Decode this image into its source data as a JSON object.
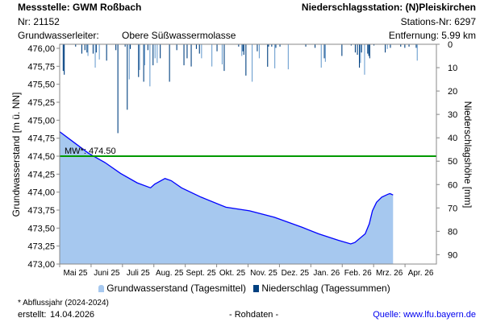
{
  "header": {
    "station_label": "Messstelle: GWM Roßbach",
    "number": "Nr: 21152",
    "aquifer_label": "Grundwasserleiter:",
    "aquifer_value": "Obere Süßwassermolasse",
    "precip_station": "Niederschlagsstation: (N)Pleiskirchen",
    "precip_station_nr": "Stations-Nr: 6297",
    "distance": "Entfernung: 5.99 km"
  },
  "footer": {
    "note": "* Abflussjahr (2024-2024)",
    "created_label": "erstellt:",
    "created_date": "14.04.2026",
    "data_type": "- Rohdaten -",
    "source": "Quelle: www.lfu.bayern.de"
  },
  "colors": {
    "area": "#a6c8ef",
    "line": "#0000ff",
    "mean": "#009900",
    "precip_dark": "#004080",
    "precip_light": "#6d9fd0"
  },
  "chart_data": {
    "type": "area",
    "start_date": "2025-05-01",
    "ylabel": "Grundwasserstand [m ü. NN]",
    "y2label": "Niederschlagshöhe [mm]",
    "ylim": [
      473.0,
      476.0
    ],
    "y2lim": [
      0,
      94
    ],
    "yticks": [
      "476,00",
      "475,75",
      "475,50",
      "475,25",
      "475,00",
      "474,75",
      "474,50",
      "474,25",
      "474,00",
      "473,75",
      "473,50",
      "473,25",
      "473,00"
    ],
    "y2ticks": [
      "0",
      "10",
      "20",
      "30",
      "40",
      "50",
      "60",
      "70",
      "80",
      "90"
    ],
    "xticks": [
      "Mai 25",
      "Juni 25",
      "Juli 25",
      "Aug. 25",
      "Sept. 25",
      "Okt. 25",
      "Nov. 25",
      "Dez. 25",
      "Jan. 26",
      "Feb. 26",
      "Mrz. 26",
      "Apr. 26"
    ],
    "mean": {
      "label": "MW*: 474.50",
      "value": 474.5
    },
    "legend": [
      "Grundwasserstand (Tagesmittel)",
      "Niederschlag (Tagessummen)"
    ],
    "groundwater": [
      [
        0,
        474.84
      ],
      [
        12,
        474.71
      ],
      [
        28,
        474.54
      ],
      [
        44,
        474.41
      ],
      [
        59,
        474.26
      ],
      [
        75,
        474.13
      ],
      [
        88,
        474.06
      ],
      [
        92,
        474.11
      ],
      [
        102,
        474.19
      ],
      [
        108,
        474.16
      ],
      [
        118,
        474.06
      ],
      [
        137,
        473.93
      ],
      [
        161,
        473.79
      ],
      [
        184,
        473.74
      ],
      [
        208,
        473.65
      ],
      [
        235,
        473.51
      ],
      [
        251,
        473.42
      ],
      [
        270,
        473.33
      ],
      [
        282,
        473.28
      ],
      [
        286,
        473.3
      ],
      [
        296,
        473.42
      ],
      [
        300,
        473.56
      ],
      [
        303,
        473.74
      ],
      [
        307,
        473.86
      ],
      [
        312,
        473.93
      ],
      [
        318,
        473.97
      ],
      [
        320,
        473.98
      ],
      [
        323,
        473.96
      ]
    ],
    "precipitation": [
      [
        3,
        11.4,
        0
      ],
      [
        4,
        13,
        0
      ],
      [
        15,
        1,
        0
      ],
      [
        21,
        4,
        0
      ],
      [
        24,
        2.5,
        0
      ],
      [
        26,
        3.5,
        0
      ],
      [
        27,
        5,
        1
      ],
      [
        32,
        4,
        0
      ],
      [
        34,
        10,
        1
      ],
      [
        35,
        3.5,
        0
      ],
      [
        38,
        6.5,
        1
      ],
      [
        45,
        7,
        0
      ],
      [
        54,
        2.5,
        0
      ],
      [
        56,
        38,
        0
      ],
      [
        63,
        1,
        0
      ],
      [
        65,
        28,
        0
      ],
      [
        67,
        15,
        1
      ],
      [
        68,
        2,
        0
      ],
      [
        76,
        14,
        0
      ],
      [
        77,
        11,
        1
      ],
      [
        81,
        16,
        0
      ],
      [
        82,
        9,
        1
      ],
      [
        85,
        2.5,
        0
      ],
      [
        87,
        18,
        1
      ],
      [
        90,
        9,
        0
      ],
      [
        92,
        6,
        1
      ],
      [
        94,
        8,
        1
      ],
      [
        97,
        6,
        0
      ],
      [
        106,
        16,
        0
      ],
      [
        113,
        2.5,
        0
      ],
      [
        120,
        9,
        0
      ],
      [
        123,
        6,
        0
      ],
      [
        127,
        9.5,
        0
      ],
      [
        132,
        2,
        0
      ],
      [
        135,
        4,
        0
      ],
      [
        137,
        6,
        1
      ],
      [
        147,
        9.5,
        1
      ],
      [
        152,
        3,
        0
      ],
      [
        157,
        8.6,
        1
      ],
      [
        159,
        11.4,
        0
      ],
      [
        173,
        1,
        0
      ],
      [
        176,
        5,
        1
      ],
      [
        177,
        3,
        0
      ],
      [
        178,
        4.5,
        0
      ],
      [
        180,
        13.4,
        0
      ],
      [
        186,
        16,
        1
      ],
      [
        191,
        3,
        0
      ],
      [
        193,
        6,
        1
      ],
      [
        201,
        9.6,
        0
      ],
      [
        202,
        1,
        0
      ],
      [
        205,
        1,
        0
      ],
      [
        208,
        10.3,
        1
      ],
      [
        209,
        1.5,
        0
      ],
      [
        213,
        1,
        0
      ],
      [
        221,
        10.7,
        1
      ],
      [
        238,
        1,
        0
      ],
      [
        247,
        1.5,
        0
      ],
      [
        253,
        10,
        1
      ],
      [
        256,
        6,
        0
      ],
      [
        257,
        7.5,
        1
      ],
      [
        273,
        5,
        0
      ],
      [
        282,
        0.5,
        0
      ],
      [
        286,
        3.5,
        0
      ],
      [
        288,
        4.5,
        0
      ],
      [
        290,
        10,
        0
      ],
      [
        291,
        8,
        1
      ],
      [
        292,
        3.5,
        0
      ],
      [
        295,
        13,
        1
      ],
      [
        298,
        4,
        0
      ],
      [
        299,
        5,
        0
      ],
      [
        300,
        6,
        0
      ],
      [
        304,
        0.5,
        0
      ],
      [
        315,
        3.5,
        0
      ],
      [
        317,
        2,
        1
      ],
      [
        320,
        1.5,
        0
      ],
      [
        330,
        1,
        0
      ],
      [
        334,
        1.5,
        0
      ],
      [
        338,
        1,
        0
      ],
      [
        345,
        1.5,
        0
      ],
      [
        346,
        7,
        1
      ]
    ]
  }
}
